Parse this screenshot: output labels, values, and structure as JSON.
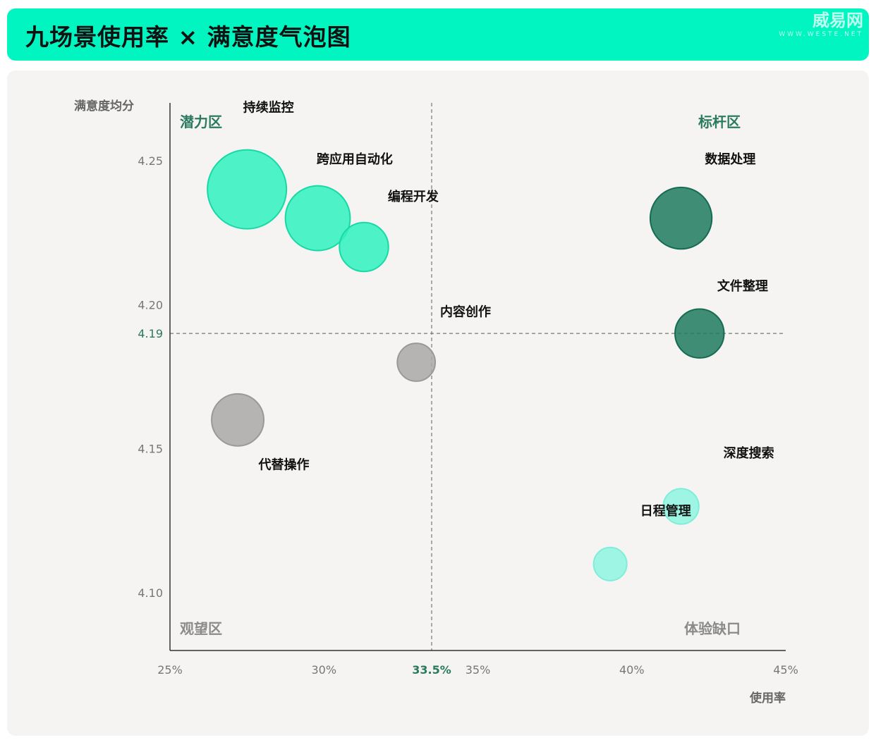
{
  "header": {
    "title": "九场景使用率 × 满意度气泡图",
    "watermark_main": "威易网",
    "watermark_sub": "WWW.WESTE.NET"
  },
  "colors": {
    "header_bg": "#00f5c0",
    "potential": "#2ff2c0",
    "benchmark": "#1e7a5e",
    "gap": "#8ef5e2",
    "watch": "#a9a8a8",
    "quadrant_green": "#2a7a60",
    "quadrant_gray": "#8a8a8a"
  },
  "chart_data": {
    "type": "bubble",
    "xlabel": "使用率",
    "ylabel": "满意度均分",
    "xlim": [
      25,
      45
    ],
    "ylim": [
      4.08,
      4.27
    ],
    "x_ticks": [
      {
        "value": 25,
        "label": "25%"
      },
      {
        "value": 30,
        "label": "30%"
      },
      {
        "value": 35,
        "label": "35%"
      },
      {
        "value": 40,
        "label": "40%"
      },
      {
        "value": 45,
        "label": "45%"
      }
    ],
    "y_ticks": [
      {
        "value": 4.25,
        "label": "4.25"
      },
      {
        "value": 4.2,
        "label": "4.20"
      },
      {
        "value": 4.15,
        "label": "4.15"
      },
      {
        "value": 4.1,
        "label": "4.10"
      }
    ],
    "reference_lines": {
      "x": {
        "value": 33.5,
        "label": "33.5%"
      },
      "y": {
        "value": 4.19,
        "label": "4.19"
      }
    },
    "quadrants": [
      {
        "id": "potential",
        "label": "潜力区",
        "position": "top-left",
        "color": "green"
      },
      {
        "id": "benchmark",
        "label": "标杆区",
        "position": "top-right",
        "color": "green"
      },
      {
        "id": "watch",
        "label": "观望区",
        "position": "bottom-left",
        "color": "gray"
      },
      {
        "id": "gap",
        "label": "体验缺口",
        "position": "bottom-right",
        "color": "gray"
      }
    ],
    "bubbles": [
      {
        "name": "持续监控",
        "x": 27.5,
        "y": 4.24,
        "size": 1.0,
        "group": "potential",
        "label_dx": 0.7,
        "label_dy": 0.027
      },
      {
        "name": "跨应用自动化",
        "x": 29.8,
        "y": 4.23,
        "size": 0.82,
        "group": "potential",
        "label_dx": 1.2,
        "label_dy": 0.019
      },
      {
        "name": "编程开发",
        "x": 31.3,
        "y": 4.22,
        "size": 0.62,
        "group": "potential",
        "label_dx": 1.6,
        "label_dy": 0.016
      },
      {
        "name": "数据处理",
        "x": 41.6,
        "y": 4.23,
        "size": 0.78,
        "group": "benchmark",
        "label_dx": 1.6,
        "label_dy": 0.019
      },
      {
        "name": "文件整理",
        "x": 42.2,
        "y": 4.19,
        "size": 0.62,
        "group": "benchmark",
        "label_dx": 1.4,
        "label_dy": 0.015
      },
      {
        "name": "内容创作",
        "x": 33.0,
        "y": 4.18,
        "size": 0.48,
        "group": "watch",
        "label_dx": 1.6,
        "label_dy": 0.016
      },
      {
        "name": "代替操作",
        "x": 27.2,
        "y": 4.16,
        "size": 0.66,
        "group": "watch",
        "label_dx": 1.5,
        "label_dy": -0.017
      },
      {
        "name": "深度搜索",
        "x": 41.6,
        "y": 4.13,
        "size": 0.45,
        "group": "gap",
        "label_dx": 2.2,
        "label_dy": 0.017
      },
      {
        "name": "日程管理",
        "x": 39.3,
        "y": 4.11,
        "size": 0.42,
        "group": "gap",
        "label_dx": 1.8,
        "label_dy": 0.017
      }
    ]
  }
}
